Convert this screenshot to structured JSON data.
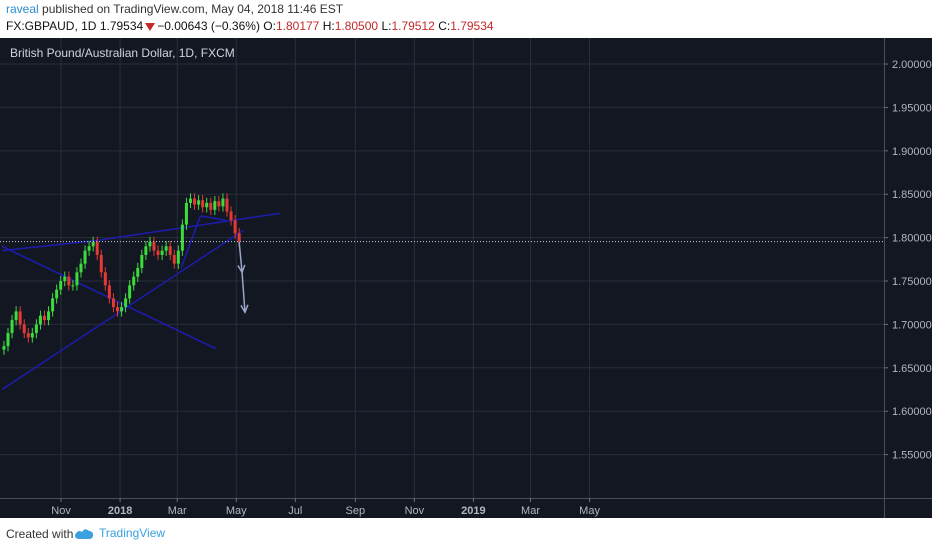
{
  "header": {
    "author": "raveal",
    "published_text": " published on TradingView.com, May 04, 2018 11:46 EST",
    "symbol": "FX:GBPAUD, 1D",
    "last_price": "1.79534",
    "change": "−0.00643 (−0.36%)",
    "o_label": "O:",
    "o_value": "1.80177",
    "h_label": "H:",
    "h_value": "1.80500",
    "l_label": "L:",
    "l_value": "1.79512",
    "c_label": "C:",
    "c_value": "1.79534"
  },
  "footer": {
    "created_with": "Created with",
    "brand": "TradingView",
    "brand_icon": "tradingview-logo-icon"
  },
  "colors": {
    "background": "#131722",
    "grid": "#2a2e39",
    "up_candle": "#3ddc3d",
    "down_candle": "#e53935",
    "trendline": "#1c1cb0",
    "arrow": "#9aa6c8",
    "price_line": "#cfd3dc",
    "axis_text": "#b2b5be"
  },
  "chart_data": {
    "type": "candlestick",
    "title": "British Pound/Australian Dollar, 1D, FXCM",
    "ylim": [
      1.5,
      2.03
    ],
    "y_ticks": [
      "2.00000",
      "1.95000",
      "1.90000",
      "1.85000",
      "1.80000",
      "1.75000",
      "1.70000",
      "1.65000",
      "1.60000",
      "1.55000"
    ],
    "x_ticks": [
      "Nov",
      "2018",
      "Mar",
      "May",
      "Jul",
      "Sep",
      "Nov",
      "2019",
      "Mar",
      "May"
    ],
    "last_close": 1.79534,
    "series": [
      {
        "values": [
          1.675,
          1.69,
          1.705,
          1.715,
          1.7,
          1.69,
          1.685,
          1.69,
          1.7,
          1.71,
          1.705,
          1.715,
          1.73,
          1.74,
          1.75,
          1.755,
          1.745,
          1.745,
          1.76,
          1.77,
          1.785,
          1.79,
          1.795,
          1.78,
          1.76,
          1.745,
          1.73,
          1.72,
          1.715,
          1.72,
          1.73,
          1.745,
          1.755,
          1.765,
          1.78,
          1.79,
          1.795,
          1.785,
          1.78,
          1.785,
          1.79,
          1.78,
          1.77,
          1.785,
          1.815,
          1.84,
          1.845,
          1.838,
          1.843,
          1.835,
          1.84,
          1.832,
          1.842,
          1.836,
          1.845,
          1.83,
          1.82,
          1.805,
          1.79534
        ]
      }
    ],
    "annotations": [
      {
        "type": "trendline",
        "from": [
          "2017-09-01",
          1.785
        ],
        "to": [
          "2017-12-10",
          1.797
        ]
      },
      {
        "type": "trendline",
        "from": [
          "2017-12-10",
          1.797
        ],
        "to": [
          "2018-06-15",
          1.828
        ]
      },
      {
        "type": "trendline",
        "from": [
          "2017-09-01",
          1.625
        ],
        "to": [
          "2018-05-08",
          1.808
        ]
      },
      {
        "type": "trendline",
        "from": [
          "2017-09-01",
          1.79
        ],
        "to": [
          "2018-04-10",
          1.672
        ]
      },
      {
        "type": "trendline",
        "from": [
          "2018-03-05",
          1.765
        ],
        "to": [
          "2018-03-25",
          1.825
        ]
      },
      {
        "type": "trendline",
        "from": [
          "2018-03-25",
          1.825
        ],
        "to": [
          "2018-04-20",
          1.82
        ]
      },
      {
        "type": "arrow",
        "from": [
          "2018-05-04",
          1.795
        ],
        "to": [
          "2018-05-07",
          1.76
        ],
        "then": [
          "2018-05-10",
          1.714
        ]
      }
    ]
  }
}
